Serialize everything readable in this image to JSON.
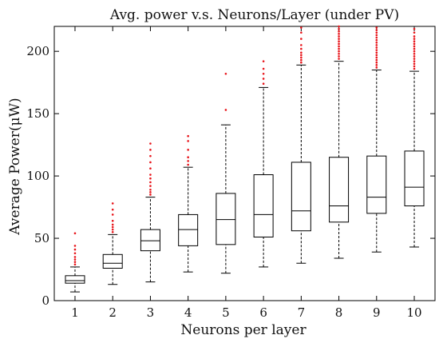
{
  "chart_data": {
    "type": "boxplot",
    "title": "Avg. power v.s. Neurons/Layer (under PV)",
    "xlabel": "Neurons per layer",
    "ylabel": "Average Power(μW)",
    "categories": [
      "1",
      "2",
      "3",
      "4",
      "5",
      "6",
      "7",
      "8",
      "9",
      "10"
    ],
    "ylim": [
      0,
      220
    ],
    "yticks": [
      0,
      50,
      100,
      150,
      200
    ],
    "grid": false,
    "box_color": "#000000",
    "outlier_color": "#e8151b",
    "boxes": [
      {
        "category": "1",
        "min": 7,
        "q1": 14,
        "median": 16,
        "q3": 20,
        "max": 27,
        "outliers": [
          29,
          31,
          33,
          35,
          38,
          41,
          44,
          54
        ]
      },
      {
        "category": "2",
        "min": 13,
        "q1": 26,
        "median": 30,
        "q3": 37,
        "max": 53,
        "outliers": [
          55,
          57,
          59,
          61,
          64,
          69,
          73,
          78
        ]
      },
      {
        "category": "3",
        "min": 15,
        "q1": 40,
        "median": 48,
        "q3": 57,
        "max": 83,
        "outliers": [
          85,
          87,
          89,
          92,
          95,
          98,
          101,
          106,
          111,
          116,
          121,
          126
        ]
      },
      {
        "category": "4",
        "min": 23,
        "q1": 44,
        "median": 57,
        "q3": 69,
        "max": 107,
        "outliers": [
          109,
          112,
          115,
          121,
          128,
          132
        ]
      },
      {
        "category": "5",
        "min": 22,
        "q1": 45,
        "median": 65,
        "q3": 86,
        "max": 141,
        "outliers": [
          153,
          182
        ]
      },
      {
        "category": "6",
        "min": 27,
        "q1": 51,
        "median": 69,
        "q3": 101,
        "max": 171,
        "outliers": [
          174,
          178,
          182,
          186,
          192
        ]
      },
      {
        "category": "7",
        "min": 30,
        "q1": 56,
        "median": 72,
        "q3": 111,
        "max": 189,
        "outliers": [
          191,
          193,
          195,
          197,
          199,
          202,
          205,
          210,
          215,
          219
        ]
      },
      {
        "category": "8",
        "min": 34,
        "q1": 63,
        "median": 76,
        "q3": 115,
        "max": 192,
        "outliers": [
          194,
          196,
          198,
          200,
          202,
          204,
          206,
          208,
          210,
          212,
          214,
          216,
          218,
          220
        ]
      },
      {
        "category": "9",
        "min": 39,
        "q1": 70,
        "median": 83,
        "q3": 116,
        "max": 185,
        "outliers": [
          187,
          189,
          191,
          193,
          195,
          197,
          199,
          201,
          203,
          205,
          207,
          209,
          211,
          213,
          215,
          217,
          219
        ]
      },
      {
        "category": "10",
        "min": 43,
        "q1": 76,
        "median": 91,
        "q3": 120,
        "max": 184,
        "outliers": [
          186,
          188,
          190,
          192,
          194,
          196,
          198,
          200,
          202,
          204,
          206,
          208,
          210,
          212,
          215,
          218
        ]
      }
    ]
  }
}
